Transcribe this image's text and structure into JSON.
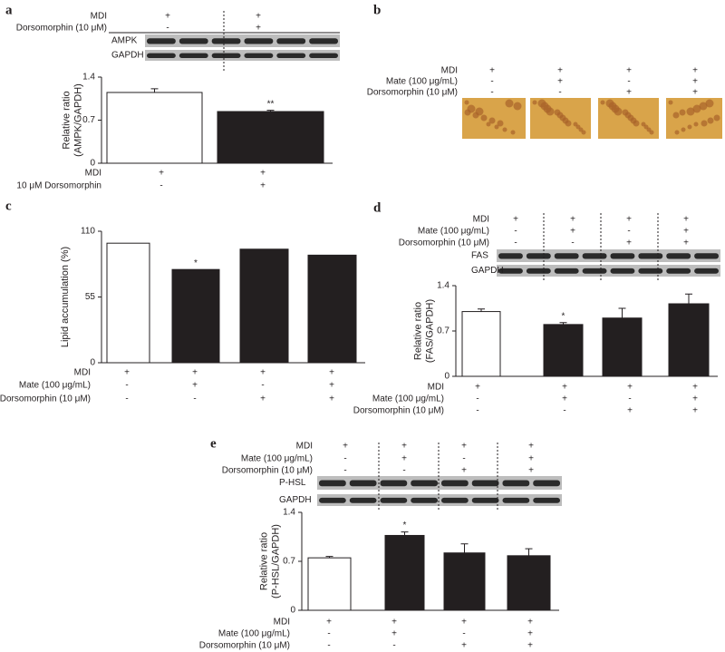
{
  "chart_data": [
    {
      "type": "bar",
      "panel": "a",
      "y_label": [
        "Relative ratio",
        "(AMPK/GAPDH)"
      ],
      "categories": [
        null,
        null
      ],
      "values": [
        1.15,
        0.84
      ],
      "errors": [
        0.06,
        0.02
      ],
      "colors": [
        "#ffffff",
        "#231f20"
      ],
      "significance": [
        null,
        "**"
      ],
      "ylim": [
        0,
        1.4
      ],
      "yticks": [
        0,
        0.7,
        1.4
      ],
      "blots": [
        "AMPK",
        "GAPDH"
      ],
      "treatments_top": [
        {
          "label": "MDI",
          "signs": [
            "+",
            "+"
          ]
        },
        {
          "label": "Dorsomorphin (10 μM)",
          "signs": [
            "-",
            "+"
          ]
        }
      ],
      "treatments_bottom": [
        {
          "label": "MDI",
          "signs": [
            "+",
            "+"
          ]
        },
        {
          "label": "10 μM Dorsomorphin",
          "signs": [
            "-",
            "+"
          ]
        }
      ]
    },
    {
      "type": "image",
      "panel": "b",
      "treatments_top": [
        {
          "label": "MDI",
          "signs": [
            "+",
            "+",
            "+",
            "+"
          ]
        },
        {
          "label": "Mate (100 μg/mL)",
          "signs": [
            "-",
            "+",
            "-",
            "+"
          ]
        },
        {
          "label": "Dorsomorphin (10 μM)",
          "signs": [
            "-",
            "-",
            "+",
            "+"
          ]
        }
      ]
    },
    {
      "type": "bar",
      "panel": "c",
      "y_label": [
        "Lipid accumulation (%)"
      ],
      "categories": [
        null,
        null,
        null,
        null
      ],
      "values": [
        100,
        78,
        95,
        90
      ],
      "colors": [
        "#ffffff",
        "#231f20",
        "#231f20",
        "#231f20"
      ],
      "significance": [
        null,
        "*",
        null,
        null
      ],
      "ylim": [
        0,
        110
      ],
      "yticks": [
        0,
        55,
        110
      ],
      "treatments_bottom": [
        {
          "label": "MDI",
          "signs": [
            "+",
            "+",
            "+",
            "+"
          ]
        },
        {
          "label": "Mate (100 μg/mL)",
          "signs": [
            "-",
            "+",
            "-",
            "+"
          ]
        },
        {
          "label": "Dorsomorphin (10 μM)",
          "signs": [
            "-",
            "-",
            "+",
            "+"
          ]
        }
      ]
    },
    {
      "type": "bar",
      "panel": "d",
      "y_label": [
        "Relative ratio",
        "(FAS/GAPDH)"
      ],
      "categories": [
        null,
        null,
        null,
        null
      ],
      "values": [
        1.0,
        0.8,
        0.9,
        1.12
      ],
      "errors": [
        0.04,
        0.03,
        0.15,
        0.15
      ],
      "colors": [
        "#ffffff",
        "#231f20",
        "#231f20",
        "#231f20"
      ],
      "significance": [
        null,
        "*",
        null,
        null
      ],
      "ylim": [
        0,
        1.4
      ],
      "yticks": [
        0,
        0.7,
        1.4
      ],
      "blots": [
        "FAS",
        "GAPDH"
      ],
      "treatments_top": [
        {
          "label": "MDI",
          "signs": [
            "+",
            "+",
            "+",
            "+"
          ]
        },
        {
          "label": "Mate (100 μg/mL)",
          "signs": [
            "-",
            "+",
            "-",
            "+"
          ]
        },
        {
          "label": "Dorsomorphin (10 μM)",
          "signs": [
            "-",
            "-",
            "+",
            "+"
          ]
        }
      ],
      "treatments_bottom": [
        {
          "label": "MDI",
          "signs": [
            "+",
            "+",
            "+",
            "+"
          ]
        },
        {
          "label": "Mate (100 μg/mL)",
          "signs": [
            "-",
            "+",
            "-",
            "+"
          ]
        },
        {
          "label": "Dorsomorphin (10 μM)",
          "signs": [
            "-",
            "-",
            "+",
            "+"
          ]
        }
      ]
    },
    {
      "type": "bar",
      "panel": "e",
      "y_label": [
        "Relative ratio",
        "(P-HSL/GAPDH)"
      ],
      "categories": [
        null,
        null,
        null,
        null
      ],
      "values": [
        0.75,
        1.07,
        0.82,
        0.78
      ],
      "errors": [
        0.02,
        0.05,
        0.13,
        0.1
      ],
      "colors": [
        "#ffffff",
        "#231f20",
        "#231f20",
        "#231f20"
      ],
      "significance": [
        null,
        "*",
        null,
        null
      ],
      "ylim": [
        0,
        1.4
      ],
      "yticks": [
        0,
        0.7,
        1.4
      ],
      "blots": [
        "P-HSL",
        "GAPDH"
      ],
      "treatments_top": [
        {
          "label": "MDI",
          "signs": [
            "+",
            "+",
            "+",
            "+"
          ]
        },
        {
          "label": "Mate (100 μg/mL)",
          "signs": [
            "-",
            "+",
            "-",
            "+"
          ]
        },
        {
          "label": "Dorsomorphin (10 μM)",
          "signs": [
            "-",
            "-",
            "+",
            "+"
          ]
        }
      ],
      "treatments_bottom": [
        {
          "label": "MDI",
          "signs": [
            "+",
            "+",
            "+",
            "+"
          ]
        },
        {
          "label": "Mate (100 μg/mL)",
          "signs": [
            "-",
            "+",
            "-",
            "+"
          ]
        },
        {
          "label": "Dorsomorphin (10 μM)",
          "signs": [
            "-",
            "-",
            "+",
            "+"
          ]
        }
      ]
    }
  ]
}
